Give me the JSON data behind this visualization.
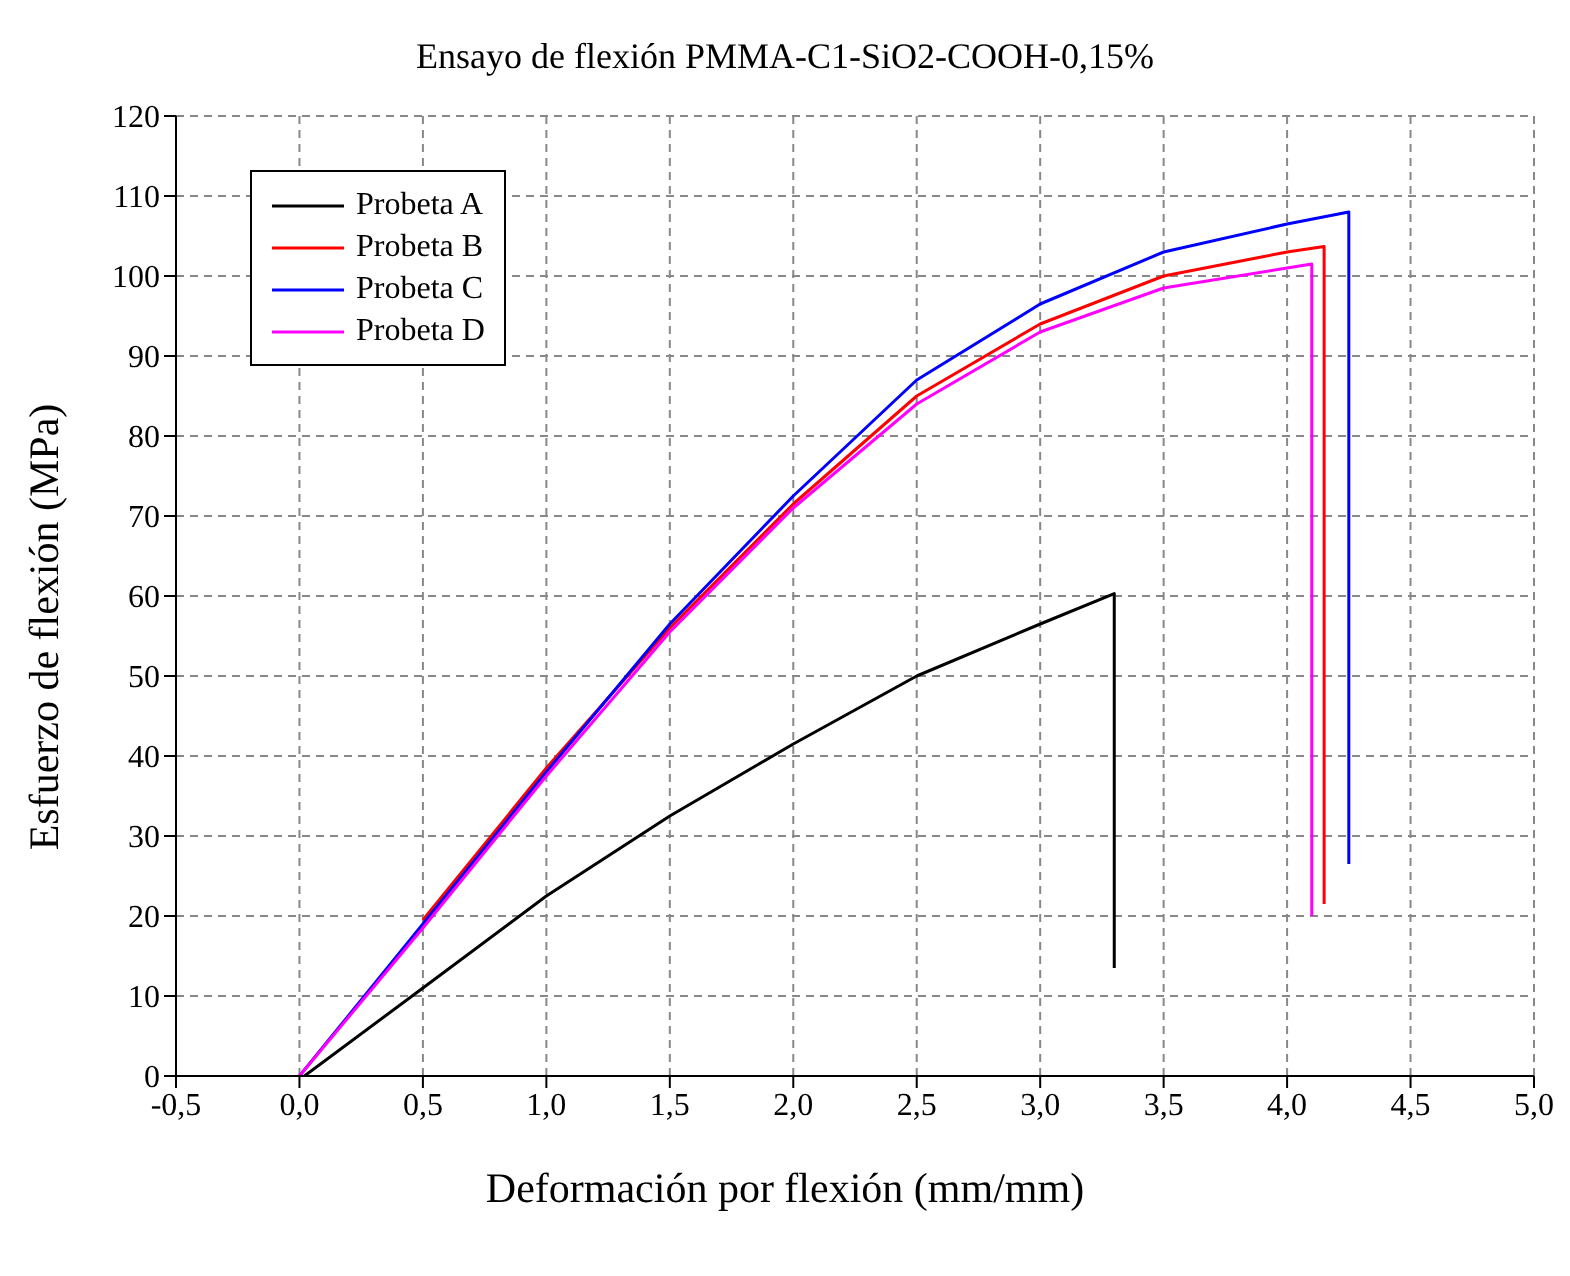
{
  "chart_data": {
    "type": "line",
    "title": "Ensayo de flexión PMMA-C1-SiO2-COOH-0,15%",
    "xlabel": "Deformación por flexión (mm/mm)",
    "ylabel": "Esfuerzo de flexión (MPa)",
    "xlim": [
      -0.5,
      5.0
    ],
    "xticks": [
      {
        "value": -0.5,
        "label": "-0,5"
      },
      {
        "value": 0,
        "label": "0,0"
      },
      {
        "value": 0.5,
        "label": "0,5"
      },
      {
        "value": 1.0,
        "label": "1,0"
      },
      {
        "value": 1.5,
        "label": "1,5"
      },
      {
        "value": 2.0,
        "label": "2,0"
      },
      {
        "value": 2.5,
        "label": "2,5"
      },
      {
        "value": 3.0,
        "label": "3,0"
      },
      {
        "value": 3.5,
        "label": "3,5"
      },
      {
        "value": 4.0,
        "label": "4,0"
      },
      {
        "value": 4.5,
        "label": "4,5"
      },
      {
        "value": 5.0,
        "label": "5,0"
      }
    ],
    "ylim": [
      0,
      120
    ],
    "yticks": [
      0,
      10,
      20,
      30,
      40,
      50,
      60,
      70,
      80,
      90,
      100,
      110,
      120
    ],
    "grid": true,
    "legend": "top left",
    "marker": "none",
    "line_style": "solid",
    "series": [
      {
        "name": "Probeta A",
        "color": "#000000",
        "x": [
          0.02,
          0.5,
          1.0,
          1.5,
          2.0,
          2.5,
          3.0,
          3.3,
          3.3
        ],
        "values": [
          0,
          11,
          22.5,
          32.5,
          41.5,
          50,
          56.5,
          60.3,
          13.5
        ]
      },
      {
        "name": "Probeta B",
        "color": "#ff0000",
        "x": [
          0.5,
          1.0,
          1.5,
          2.0,
          2.5,
          3.0,
          3.5,
          4.0,
          4.15,
          4.15
        ],
        "values": [
          19.5,
          38.5,
          56,
          71.5,
          85,
          94,
          100,
          103,
          103.7,
          21.5
        ]
      },
      {
        "name": "Probeta C",
        "color": "#0000ff",
        "x": [
          0,
          0.5,
          1.0,
          1.5,
          2.0,
          2.5,
          3.0,
          3.5,
          4.0,
          4.25,
          4.25
        ],
        "values": [
          0,
          19,
          38,
          56.5,
          72.5,
          87,
          96.5,
          103,
          106.5,
          108,
          26.5
        ]
      },
      {
        "name": "Probeta D",
        "color": "#ff00ff",
        "x": [
          0,
          0.5,
          1.0,
          1.5,
          2.0,
          2.5,
          3.0,
          3.5,
          4.0,
          4.1,
          4.1
        ],
        "values": [
          0,
          18.5,
          37.5,
          55.5,
          71,
          84,
          93,
          98.5,
          101,
          101.5,
          20
        ]
      }
    ]
  }
}
